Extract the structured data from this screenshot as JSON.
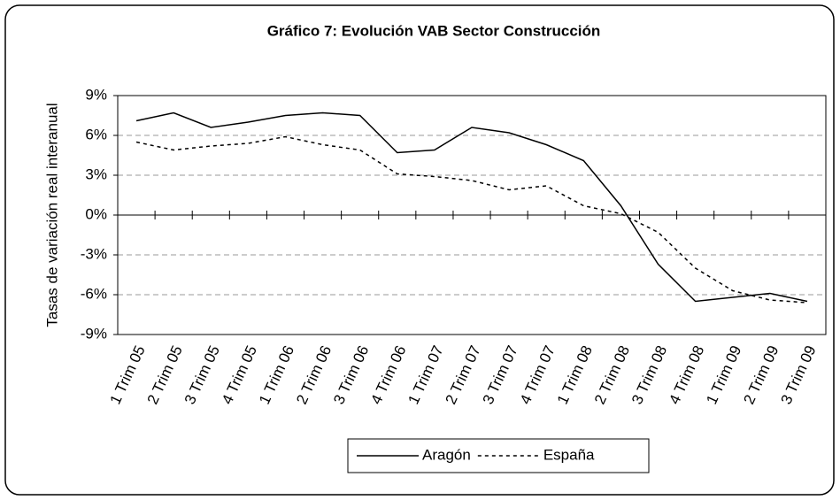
{
  "chart_data": {
    "type": "line",
    "title": "Gráfico 7: Evolución VAB Sector Construcción",
    "y_label": "Tasas de variación real interanual",
    "categories": [
      "1 Trim 05",
      "2 Trim 05",
      "3 Trim 05",
      "4 Trim 05",
      "1 Trim 06",
      "2 Trim 06",
      "3 Trim 06",
      "4 Trim 06",
      "1 Trim 07",
      "2 Trim 07",
      "3 Trim 07",
      "4 Trim 07",
      "1 Trim 08",
      "2 Trim 08",
      "3 Trim 08",
      "4 Trim 08",
      "1 Trim 09",
      "2 Trim 09",
      "3 Trim 09"
    ],
    "series": [
      {
        "name": "Aragón",
        "color": "#000000",
        "style": "solid",
        "values": [
          7.1,
          7.7,
          6.6,
          7.0,
          7.5,
          7.7,
          7.5,
          4.7,
          4.9,
          6.6,
          6.2,
          5.3,
          4.1,
          0.7,
          -3.7,
          -6.5,
          -6.2,
          -5.9,
          -6.5
        ]
      },
      {
        "name": "España",
        "color": "#000000",
        "style": "dotted",
        "values": [
          5.5,
          4.9,
          5.2,
          5.4,
          5.9,
          5.3,
          4.9,
          3.1,
          2.9,
          2.6,
          1.9,
          2.2,
          0.7,
          0.1,
          -1.3,
          -4.0,
          -5.7,
          -6.4,
          -6.6
        ]
      }
    ],
    "ylim": [
      -9,
      9
    ],
    "yticks": [
      {
        "value": -9,
        "label": "-9%"
      },
      {
        "value": -6,
        "label": "-6%"
      },
      {
        "value": -3,
        "label": "-3%"
      },
      {
        "value": 0,
        "label": "0%"
      },
      {
        "value": 3,
        "label": "3%"
      },
      {
        "value": 6,
        "label": "6%"
      },
      {
        "value": 9,
        "label": "9%"
      }
    ],
    "grid": true,
    "legend": "bottom"
  }
}
